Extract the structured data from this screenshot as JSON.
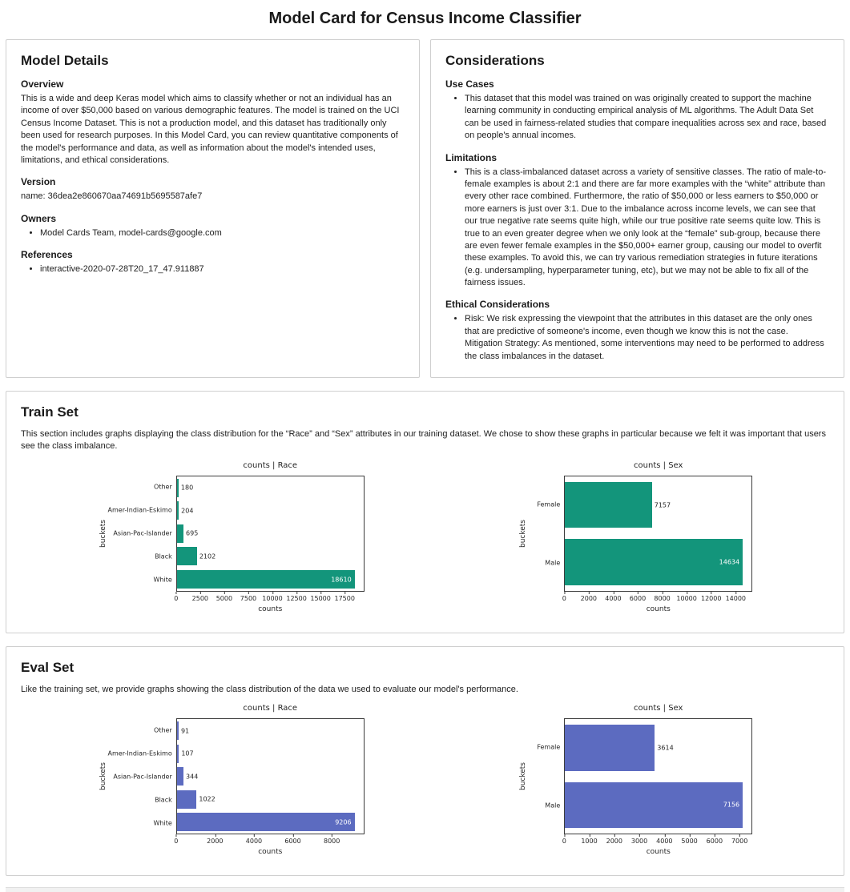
{
  "page": {
    "title": "Model Card for Census Income Classifier"
  },
  "model_details": {
    "heading": "Model Details",
    "overview": {
      "heading": "Overview",
      "text": "This is a wide and deep Keras model which aims to classify whether or not an individual has an income of over $50,000 based on various demographic features. The model is trained on the UCI Census Income Dataset. This is not a production model, and this dataset has traditionally only been used for research purposes. In this Model Card, you can review quantitative components of the model's performance and data, as well as information about the model's intended uses, limitations, and ethical considerations."
    },
    "version": {
      "heading": "Version",
      "text": "name: 36dea2e860670aa74691b5695587afe7"
    },
    "owners": {
      "heading": "Owners",
      "items": [
        "Model Cards Team, model-cards@google.com"
      ]
    },
    "references": {
      "heading": "References",
      "items": [
        "interactive-2020-07-28T20_17_47.911887"
      ]
    }
  },
  "considerations": {
    "heading": "Considerations",
    "use_cases": {
      "heading": "Use Cases",
      "items": [
        "This dataset that this model was trained on was originally created to support the machine learning community in conducting empirical analysis of ML algorithms. The Adult Data Set can be used in fairness-related studies that compare inequalities across sex and race, based on people's annual incomes."
      ]
    },
    "limitations": {
      "heading": "Limitations",
      "items": [
        "This is a class-imbalanced dataset across a variety of sensitive classes. The ratio of male-to-female examples is about 2:1 and there are far more examples with the “white” attribute than every other race combined. Furthermore, the ratio of $50,000 or less earners to $50,000 or more earners is just over 3:1. Due to the imbalance across income levels, we can see that our true negative rate seems quite high, while our true positive rate seems quite low. This is true to an even greater degree when we only look at the “female” sub-group, because there are even fewer female examples in the $50,000+ earner group, causing our model to overfit these examples. To avoid this, we can try various remediation strategies in future iterations (e.g. undersampling, hyperparameter tuning, etc), but we may not be able to fix all of the fairness issues."
      ]
    },
    "ethical": {
      "heading": "Ethical Considerations",
      "risk": "Risk: We risk expressing the viewpoint that the attributes in this dataset are the only ones that are predictive of someone's income, even though we know this is not the case.",
      "mitigation": "Mitigation Strategy: As mentioned, some interventions may need to be performed to address the class imbalances in the dataset."
    }
  },
  "train_set": {
    "heading": "Train Set",
    "description": "This section includes graphs displaying the class distribution for the “Race” and “Sex” attributes in our training dataset. We chose to show these graphs in particular because we felt it was important that users see the class imbalance."
  },
  "eval_set": {
    "heading": "Eval Set",
    "description": "Like the training set, we provide graphs showing the class distribution of the data we used to evaluate our model's performance."
  },
  "colors": {
    "train_bar": "#13957b",
    "eval_bar": "#5c6bc0"
  },
  "chart_data": [
    {
      "id": "train_race",
      "type": "bar",
      "orientation": "horizontal",
      "title": "counts | Race",
      "xlabel": "counts",
      "ylabel": "buckets",
      "categories": [
        "Other",
        "Amer-Indian-Eskimo",
        "Asian-Pac-Islander",
        "Black",
        "White"
      ],
      "values": [
        180,
        204,
        695,
        2102,
        18610
      ],
      "xticks": [
        0,
        2500,
        5000,
        7500,
        10000,
        12500,
        15000,
        17500
      ],
      "xlim": [
        0,
        19540
      ],
      "bar_color": "#13957b",
      "grid": false,
      "legend": "none"
    },
    {
      "id": "train_sex",
      "type": "bar",
      "orientation": "horizontal",
      "title": "counts | Sex",
      "xlabel": "counts",
      "ylabel": "buckets",
      "categories": [
        "Female",
        "Male"
      ],
      "values": [
        7157,
        14634
      ],
      "xticks": [
        0,
        2000,
        4000,
        6000,
        8000,
        10000,
        12000,
        14000
      ],
      "xlim": [
        0,
        15370
      ],
      "bar_color": "#13957b",
      "grid": false,
      "legend": "none"
    },
    {
      "id": "eval_race",
      "type": "bar",
      "orientation": "horizontal",
      "title": "counts | Race",
      "xlabel": "counts",
      "ylabel": "buckets",
      "categories": [
        "Other",
        "Amer-Indian-Eskimo",
        "Asian-Pac-Islander",
        "Black",
        "White"
      ],
      "values": [
        91,
        107,
        344,
        1022,
        9206
      ],
      "xticks": [
        0,
        2000,
        4000,
        6000,
        8000
      ],
      "xlim": [
        0,
        9670
      ],
      "bar_color": "#5c6bc0",
      "grid": false,
      "legend": "none"
    },
    {
      "id": "eval_sex",
      "type": "bar",
      "orientation": "horizontal",
      "title": "counts | Sex",
      "xlabel": "counts",
      "ylabel": "buckets",
      "categories": [
        "Female",
        "Male"
      ],
      "values": [
        3614,
        7156
      ],
      "xticks": [
        0,
        1000,
        2000,
        3000,
        4000,
        5000,
        6000,
        7000
      ],
      "xlim": [
        0,
        7515
      ],
      "bar_color": "#5c6bc0",
      "grid": false,
      "legend": "none"
    }
  ]
}
